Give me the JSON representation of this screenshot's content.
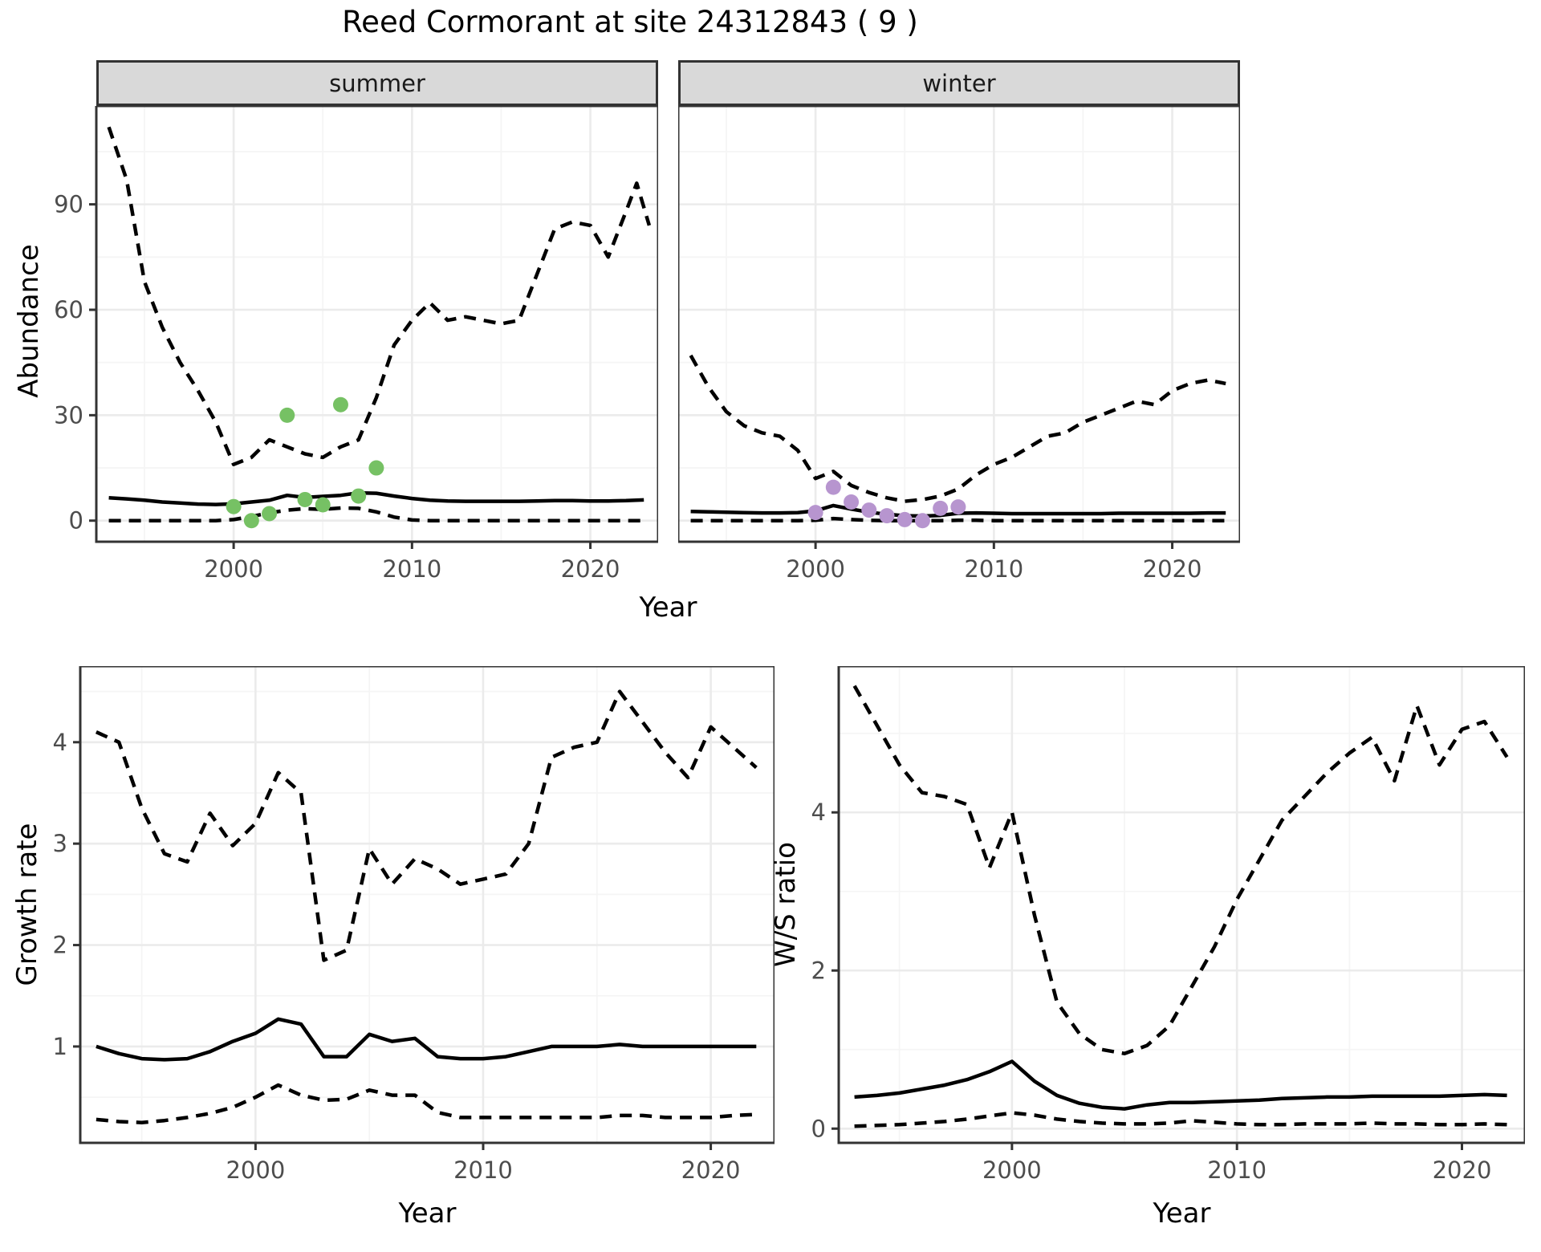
{
  "title": "Reed Cormorant at site 24312843 ( 9 )",
  "axis": {
    "shared_x_label": "Year"
  },
  "colors": {
    "summer_points": "#76C164",
    "winter_points": "#B795CF",
    "line": "#000000",
    "strip_bg": "#D9D9D9",
    "panel_border": "#333333",
    "grid_major": "#EBEBEB",
    "grid_minor": "#F5F5F5",
    "tick_text": "#4D4D4D",
    "tick_mark": "#333333"
  },
  "chart_data": [
    {
      "id": "abundance-summer",
      "type": "line",
      "facet_label": "summer",
      "ylabel": "Abundance",
      "xlabel": "Year",
      "xlim": [
        1992.3,
        2023.8
      ],
      "ylim": [
        -6,
        118
      ],
      "x_ticks": [
        2000,
        2010,
        2020
      ],
      "y_ticks": [
        0,
        30,
        60,
        90
      ],
      "grid": true,
      "legend": false,
      "series": [
        {
          "name": "upper-95ci",
          "style": "dashed",
          "x": [
            1993,
            1994,
            1995,
            1996,
            1997,
            1998,
            1999,
            2000,
            2001,
            2002,
            2003,
            2004,
            2005,
            2006,
            2007,
            2008,
            2009,
            2010,
            2011,
            2012,
            2013,
            2014,
            2015,
            2016,
            2017,
            2018,
            2019,
            2020,
            2021,
            2022,
            2022.6,
            2023.3
          ],
          "y": [
            112,
            97,
            68,
            55,
            45,
            37,
            28,
            16,
            18,
            23,
            21,
            19,
            18,
            21,
            23,
            35,
            50,
            57,
            62,
            57,
            58,
            57,
            56,
            57,
            70,
            83,
            85,
            84,
            75,
            88,
            96,
            84
          ]
        },
        {
          "name": "median",
          "style": "solid",
          "x": [
            1993,
            1994,
            1995,
            1996,
            1997,
            1998,
            1999,
            2000,
            2001,
            2002,
            2003,
            2004,
            2005,
            2006,
            2007,
            2008,
            2009,
            2010,
            2011,
            2012,
            2013,
            2014,
            2015,
            2016,
            2017,
            2018,
            2019,
            2020,
            2021,
            2022,
            2023
          ],
          "y": [
            6.5,
            6.2,
            5.8,
            5.3,
            5.0,
            4.7,
            4.6,
            4.8,
            5.3,
            5.8,
            7.2,
            6.6,
            6.9,
            7.2,
            7.9,
            7.8,
            7.0,
            6.3,
            5.8,
            5.6,
            5.5,
            5.5,
            5.5,
            5.5,
            5.6,
            5.7,
            5.7,
            5.6,
            5.6,
            5.7,
            5.9
          ]
        },
        {
          "name": "lower-95ci",
          "style": "dashed",
          "x": [
            1993,
            1994,
            1995,
            1996,
            1997,
            1998,
            1999,
            2000,
            2001,
            2002,
            2003,
            2004,
            2005,
            2006,
            2007,
            2008,
            2009,
            2010,
            2011,
            2012,
            2013,
            2014,
            2015,
            2016,
            2017,
            2018,
            2019,
            2020,
            2021,
            2022,
            2023
          ],
          "y": [
            0,
            0,
            0,
            0,
            0,
            0,
            0,
            0.3,
            1.2,
            2.2,
            3.0,
            3.4,
            3.2,
            3.6,
            3.5,
            2.5,
            1.0,
            0.2,
            0,
            0,
            0,
            0,
            0,
            0,
            0,
            0,
            0,
            0,
            0,
            0,
            0
          ]
        }
      ],
      "points": {
        "name": "observed-summer",
        "color_key": "summer_points",
        "x": [
          2000,
          2001,
          2002,
          2003,
          2004,
          2005,
          2006,
          2007,
          2008
        ],
        "y": [
          4,
          0,
          2,
          30,
          6,
          4.5,
          33,
          7,
          15
        ]
      }
    },
    {
      "id": "abundance-winter",
      "type": "line",
      "facet_label": "winter",
      "ylabel": "Abundance",
      "xlabel": "Year",
      "xlim": [
        1992.3,
        2023.8
      ],
      "ylim": [
        -6,
        118
      ],
      "x_ticks": [
        2000,
        2010,
        2020
      ],
      "y_ticks": [
        0,
        30,
        60,
        90
      ],
      "grid": true,
      "legend": false,
      "series": [
        {
          "name": "upper-95ci",
          "style": "dashed",
          "x": [
            1993,
            1994,
            1995,
            1996,
            1997,
            1998,
            1999,
            2000,
            2001,
            2002,
            2003,
            2004,
            2005,
            2006,
            2007,
            2008,
            2009,
            2010,
            2011,
            2012,
            2013,
            2014,
            2015,
            2016,
            2017,
            2018,
            2019,
            2020,
            2021,
            2022,
            2023
          ],
          "y": [
            47,
            38,
            31,
            27,
            25,
            24,
            20,
            12,
            14,
            10,
            8,
            6.5,
            5.5,
            6,
            7,
            9,
            13,
            16,
            18,
            21,
            24,
            25,
            28,
            30,
            32,
            34,
            33,
            37,
            39,
            40,
            39
          ]
        },
        {
          "name": "median",
          "style": "solid",
          "x": [
            1993,
            1994,
            1995,
            1996,
            1997,
            1998,
            1999,
            2000,
            2001,
            2002,
            2003,
            2004,
            2005,
            2006,
            2007,
            2008,
            2009,
            2010,
            2011,
            2012,
            2013,
            2014,
            2015,
            2016,
            2017,
            2018,
            2019,
            2020,
            2021,
            2022,
            2023
          ],
          "y": [
            2.6,
            2.5,
            2.4,
            2.3,
            2.2,
            2.2,
            2.3,
            2.8,
            4.3,
            3.3,
            2.4,
            1.8,
            1.4,
            1.3,
            1.5,
            2.1,
            2.2,
            2.1,
            2.0,
            2.0,
            2.0,
            2.0,
            2.0,
            2.0,
            2.1,
            2.1,
            2.1,
            2.1,
            2.1,
            2.2,
            2.2
          ]
        },
        {
          "name": "lower-95ci",
          "style": "dashed",
          "x": [
            1993,
            1994,
            1995,
            1996,
            1997,
            1998,
            1999,
            2000,
            2001,
            2002,
            2003,
            2004,
            2005,
            2006,
            2007,
            2008,
            2009,
            2010,
            2011,
            2012,
            2013,
            2014,
            2015,
            2016,
            2017,
            2018,
            2019,
            2020,
            2021,
            2022,
            2023
          ],
          "y": [
            0,
            0,
            0,
            0,
            0,
            0,
            0,
            0.1,
            0.6,
            0.3,
            0.1,
            0,
            0,
            0,
            0,
            0.1,
            0.1,
            0,
            0,
            0,
            0,
            0,
            0,
            0,
            0,
            0,
            0,
            0,
            0,
            0,
            0
          ]
        }
      ],
      "points": {
        "name": "observed-winter",
        "color_key": "winter_points",
        "x": [
          2000,
          2001,
          2002,
          2003,
          2004,
          2005,
          2006,
          2007,
          2008
        ],
        "y": [
          2.3,
          9.5,
          5.3,
          3.0,
          1.4,
          0.3,
          0,
          3.5,
          3.9
        ]
      }
    },
    {
      "id": "growth-rate",
      "type": "line",
      "facet_label": "",
      "ylabel": "Growth rate",
      "xlabel": "Year",
      "xlim": [
        1992.3,
        2022.8
      ],
      "ylim": [
        0.05,
        4.75
      ],
      "x_ticks": [
        2000,
        2010,
        2020
      ],
      "y_ticks": [
        1,
        2,
        3,
        4
      ],
      "grid": true,
      "legend": false,
      "series": [
        {
          "name": "upper-95ci",
          "style": "dashed",
          "x": [
            1993,
            1994,
            1995,
            1996,
            1997,
            1998,
            1999,
            2000,
            2001,
            2002,
            2003,
            2004,
            2005,
            2006,
            2007,
            2008,
            2009,
            2010,
            2011,
            2012,
            2013,
            2014,
            2015,
            2016,
            2017,
            2018,
            2019,
            2020,
            2021,
            2022
          ],
          "y": [
            4.1,
            4.0,
            3.35,
            2.9,
            2.82,
            3.3,
            2.98,
            3.2,
            3.7,
            3.5,
            1.85,
            1.95,
            2.95,
            2.6,
            2.85,
            2.75,
            2.6,
            2.65,
            2.7,
            3.0,
            3.85,
            3.95,
            4.0,
            4.5,
            4.2,
            3.9,
            3.65,
            4.15,
            3.95,
            3.75
          ]
        },
        {
          "name": "median",
          "style": "solid",
          "x": [
            1993,
            1994,
            1995,
            1996,
            1997,
            1998,
            1999,
            2000,
            2001,
            2002,
            2003,
            2004,
            2005,
            2006,
            2007,
            2008,
            2009,
            2010,
            2011,
            2012,
            2013,
            2014,
            2015,
            2016,
            2017,
            2018,
            2019,
            2020,
            2021,
            2022
          ],
          "y": [
            1.0,
            0.93,
            0.88,
            0.87,
            0.88,
            0.95,
            1.05,
            1.13,
            1.27,
            1.22,
            0.9,
            0.9,
            1.12,
            1.05,
            1.08,
            0.9,
            0.88,
            0.88,
            0.9,
            0.95,
            1.0,
            1.0,
            1.0,
            1.02,
            1.0,
            1.0,
            1.0,
            1.0,
            1.0,
            1.0
          ]
        },
        {
          "name": "lower-95ci",
          "style": "dashed",
          "x": [
            1993,
            1994,
            1995,
            1996,
            1997,
            1998,
            1999,
            2000,
            2001,
            2002,
            2003,
            2004,
            2005,
            2006,
            2007,
            2008,
            2009,
            2010,
            2011,
            2012,
            2013,
            2014,
            2015,
            2016,
            2017,
            2018,
            2019,
            2020,
            2021,
            2022
          ],
          "y": [
            0.28,
            0.26,
            0.25,
            0.27,
            0.3,
            0.34,
            0.4,
            0.5,
            0.62,
            0.52,
            0.47,
            0.48,
            0.57,
            0.52,
            0.52,
            0.35,
            0.3,
            0.3,
            0.3,
            0.3,
            0.3,
            0.3,
            0.3,
            0.32,
            0.32,
            0.3,
            0.3,
            0.3,
            0.32,
            0.33
          ]
        }
      ]
    },
    {
      "id": "ws-ratio",
      "type": "line",
      "facet_label": "",
      "ylabel": "W/S ratio",
      "xlabel": "Year",
      "xlim": [
        1992.3,
        2022.8
      ],
      "ylim": [
        -0.18,
        5.85
      ],
      "x_ticks": [
        2000,
        2010,
        2020
      ],
      "y_ticks": [
        0,
        2,
        4
      ],
      "grid": true,
      "legend": false,
      "series": [
        {
          "name": "upper-95ci",
          "style": "dashed",
          "x": [
            1993,
            1994,
            1995,
            1996,
            1997,
            1998,
            1999,
            2000,
            2001,
            2002,
            2003,
            2004,
            2005,
            2006,
            2007,
            2008,
            2009,
            2010,
            2011,
            2012,
            2013,
            2014,
            2015,
            2016,
            2017,
            2018,
            2019,
            2020,
            2021,
            2022
          ],
          "y": [
            5.6,
            5.1,
            4.6,
            4.25,
            4.2,
            4.1,
            3.3,
            4.0,
            2.7,
            1.6,
            1.2,
            1.0,
            0.95,
            1.05,
            1.3,
            1.8,
            2.3,
            2.9,
            3.4,
            3.9,
            4.2,
            4.5,
            4.75,
            4.95,
            4.4,
            5.35,
            4.6,
            5.05,
            5.15,
            4.7
          ]
        },
        {
          "name": "median",
          "style": "solid",
          "x": [
            1993,
            1994,
            1995,
            1996,
            1997,
            1998,
            1999,
            2000,
            2001,
            2002,
            2003,
            2004,
            2005,
            2006,
            2007,
            2008,
            2009,
            2010,
            2011,
            2012,
            2013,
            2014,
            2015,
            2016,
            2017,
            2018,
            2019,
            2020,
            2021,
            2022
          ],
          "y": [
            0.4,
            0.42,
            0.45,
            0.5,
            0.55,
            0.62,
            0.72,
            0.85,
            0.6,
            0.42,
            0.32,
            0.27,
            0.25,
            0.3,
            0.33,
            0.33,
            0.34,
            0.35,
            0.36,
            0.38,
            0.39,
            0.4,
            0.4,
            0.41,
            0.41,
            0.41,
            0.41,
            0.42,
            0.43,
            0.42
          ]
        },
        {
          "name": "lower-95ci",
          "style": "dashed",
          "x": [
            1993,
            1994,
            1995,
            1996,
            1997,
            1998,
            1999,
            2000,
            2001,
            2002,
            2003,
            2004,
            2005,
            2006,
            2007,
            2008,
            2009,
            2010,
            2011,
            2012,
            2013,
            2014,
            2015,
            2016,
            2017,
            2018,
            2019,
            2020,
            2021,
            2022
          ],
          "y": [
            0.03,
            0.04,
            0.05,
            0.07,
            0.09,
            0.12,
            0.16,
            0.2,
            0.17,
            0.12,
            0.09,
            0.07,
            0.06,
            0.06,
            0.07,
            0.1,
            0.08,
            0.06,
            0.05,
            0.05,
            0.06,
            0.06,
            0.06,
            0.07,
            0.06,
            0.06,
            0.05,
            0.05,
            0.06,
            0.05
          ]
        }
      ]
    }
  ]
}
